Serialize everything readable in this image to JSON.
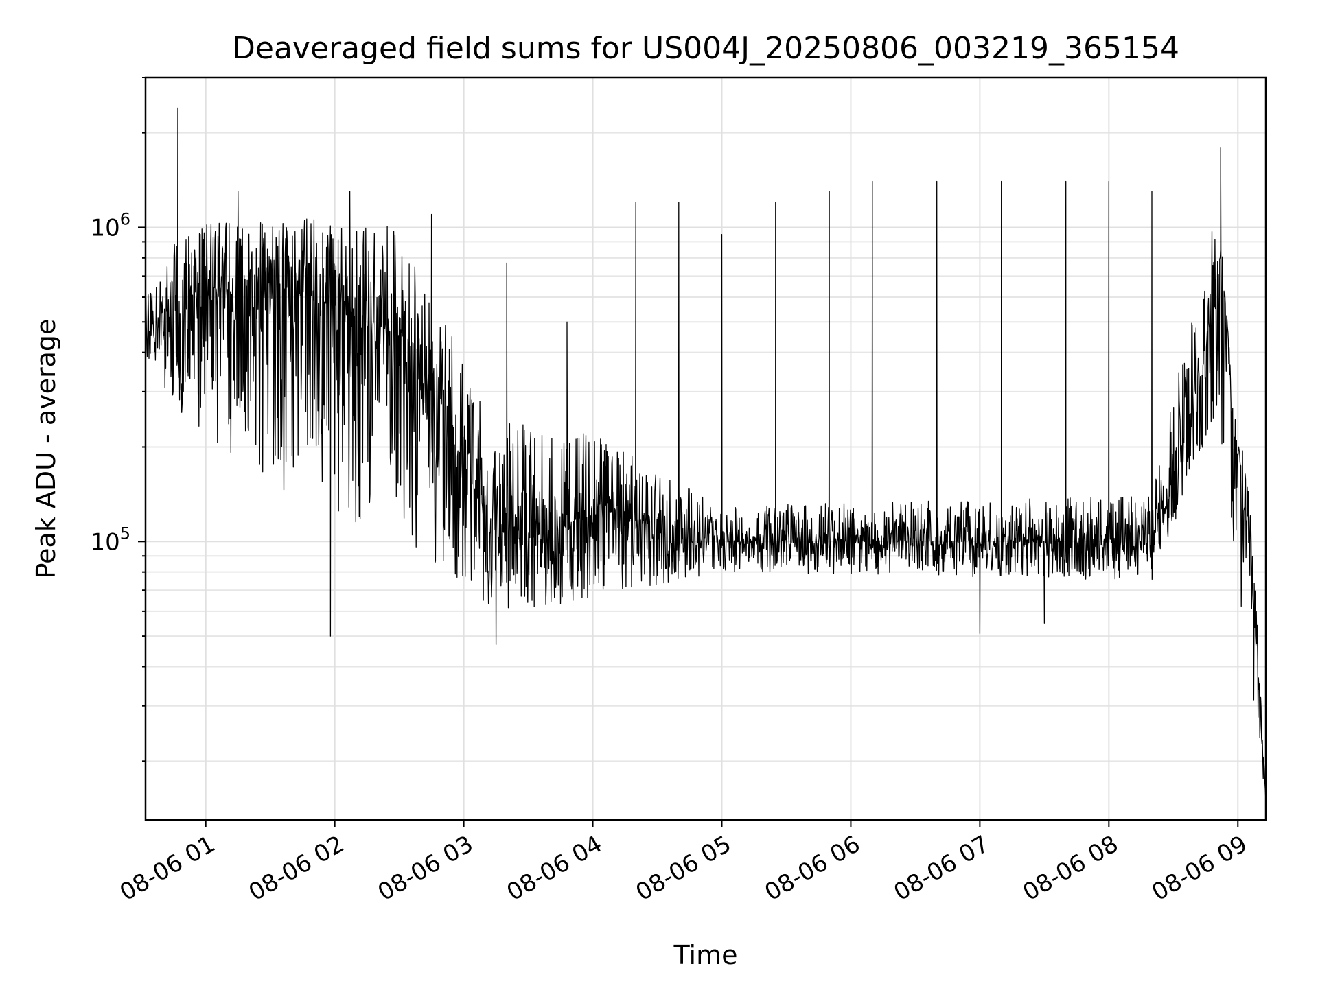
{
  "chart_data": {
    "type": "line",
    "title": "Deaveraged field sums for US004J_20250806_003219_365154",
    "xlabel": "Time",
    "ylabel": "Peak ADU - average",
    "yscale": "log",
    "grid": true,
    "x_range": [
      "08-06 00:32",
      "08-06 09:13"
    ],
    "y_range": [
      13000,
      3000000
    ],
    "x_ticks": [
      {
        "value": "08-06 01:00",
        "label": "08-06 01"
      },
      {
        "value": "08-06 02:00",
        "label": "08-06 02"
      },
      {
        "value": "08-06 03:00",
        "label": "08-06 03"
      },
      {
        "value": "08-06 04:00",
        "label": "08-06 04"
      },
      {
        "value": "08-06 05:00",
        "label": "08-06 05"
      },
      {
        "value": "08-06 06:00",
        "label": "08-06 06"
      },
      {
        "value": "08-06 07:00",
        "label": "08-06 07"
      },
      {
        "value": "08-06 08:00",
        "label": "08-06 08"
      },
      {
        "value": "08-06 09:00",
        "label": "08-06 09"
      }
    ],
    "y_ticks": [
      {
        "value": 100000,
        "base": "10",
        "exp": "5"
      },
      {
        "value": 1000000,
        "base": "10",
        "exp": "6"
      }
    ],
    "series": [
      {
        "color": "#000000",
        "baseline": [
          {
            "x": "08-06 00:32",
            "y": 450000
          },
          {
            "x": "08-06 00:45",
            "y": 530000
          },
          {
            "x": "08-06 00:50",
            "y": 600000
          },
          {
            "x": "08-06 01:30",
            "y": 650000
          },
          {
            "x": "08-06 02:00",
            "y": 560000
          },
          {
            "x": "08-06 02:30",
            "y": 450000
          },
          {
            "x": "08-06 02:50",
            "y": 230000
          },
          {
            "x": "08-06 03:15",
            "y": 110000
          },
          {
            "x": "08-06 03:40",
            "y": 110000
          },
          {
            "x": "08-06 04:10",
            "y": 130000
          },
          {
            "x": "08-06 04:40",
            "y": 100000
          },
          {
            "x": "08-06 06:00",
            "y": 100000
          },
          {
            "x": "08-06 07:00",
            "y": 100000
          },
          {
            "x": "08-06 08:20",
            "y": 100000
          },
          {
            "x": "08-06 08:30",
            "y": 150000
          },
          {
            "x": "08-06 08:45",
            "y": 400000
          },
          {
            "x": "08-06 08:52",
            "y": 800000
          },
          {
            "x": "08-06 08:55",
            "y": 500000
          },
          {
            "x": "08-06 08:58",
            "y": 210000
          },
          {
            "x": "08-06 09:04",
            "y": 190000
          },
          {
            "x": "08-06 09:07",
            "y": 100000
          },
          {
            "x": "08-06 09:10",
            "y": 40000
          },
          {
            "x": "08-06 09:13",
            "y": 15000
          }
        ],
        "noise_band": [
          {
            "x": "08-06 00:32",
            "y_low": 380000,
            "y_high": 620000
          },
          {
            "x": "08-06 00:50",
            "y_low": 250000,
            "y_high": 1000000
          },
          {
            "x": "08-06 01:30",
            "y_low": 150000,
            "y_high": 1100000
          },
          {
            "x": "08-06 02:30",
            "y_low": 100000,
            "y_high": 1000000
          },
          {
            "x": "08-06 03:15",
            "y_low": 60000,
            "y_high": 250000
          },
          {
            "x": "08-06 04:00",
            "y_low": 65000,
            "y_high": 220000
          },
          {
            "x": "08-06 05:00",
            "y_low": 80000,
            "y_high": 130000
          },
          {
            "x": "08-06 08:20",
            "y_low": 75000,
            "y_high": 140000
          },
          {
            "x": "08-06 08:50",
            "y_low": 250000,
            "y_high": 1400000
          },
          {
            "x": "08-06 09:13",
            "y_low": 15000,
            "y_high": 15000
          }
        ],
        "peaks": [
          {
            "x": "08-06 00:47",
            "y": 2400000
          },
          {
            "x": "08-06 01:15",
            "y": 1300000
          },
          {
            "x": "08-06 02:07",
            "y": 1300000
          },
          {
            "x": "08-06 02:45",
            "y": 1100000
          },
          {
            "x": "08-06 03:20",
            "y": 770000
          },
          {
            "x": "08-06 03:48",
            "y": 500000
          },
          {
            "x": "08-06 04:20",
            "y": 1200000
          },
          {
            "x": "08-06 04:40",
            "y": 1200000
          },
          {
            "x": "08-06 05:00",
            "y": 950000
          },
          {
            "x": "08-06 05:25",
            "y": 1200000
          },
          {
            "x": "08-06 05:50",
            "y": 1300000
          },
          {
            "x": "08-06 06:10",
            "y": 1400000
          },
          {
            "x": "08-06 06:40",
            "y": 1400000
          },
          {
            "x": "08-06 07:10",
            "y": 1400000
          },
          {
            "x": "08-06 07:40",
            "y": 1400000
          },
          {
            "x": "08-06 08:00",
            "y": 1400000
          },
          {
            "x": "08-06 08:20",
            "y": 1300000
          },
          {
            "x": "08-06 08:52",
            "y": 1800000
          }
        ],
        "dips": [
          {
            "x": "08-06 01:58",
            "y": 50000
          },
          {
            "x": "08-06 03:15",
            "y": 47000
          },
          {
            "x": "08-06 07:00",
            "y": 51000
          },
          {
            "x": "08-06 07:30",
            "y": 55000
          }
        ]
      }
    ]
  }
}
